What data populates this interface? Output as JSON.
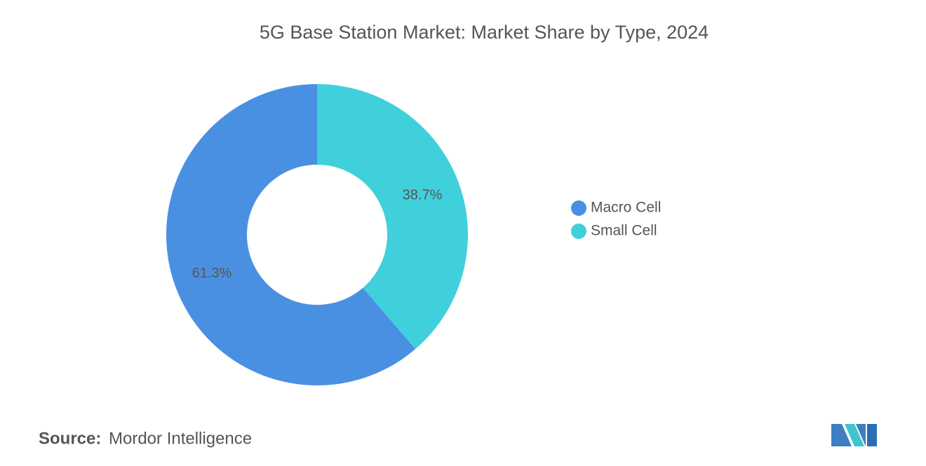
{
  "chart_data": {
    "type": "donut",
    "title": "5G Base Station Market: Market Share by Type, 2024",
    "categories": [
      "Macro Cell",
      "Small Cell"
    ],
    "values": [
      61.3,
      38.7
    ],
    "value_labels": [
      "61.3%",
      "38.7%"
    ],
    "colors": [
      "#4a90e2",
      "#40d0db"
    ],
    "legend": "right"
  },
  "footer": {
    "source_label": "Source:",
    "source": "Mordor Intelligence"
  }
}
